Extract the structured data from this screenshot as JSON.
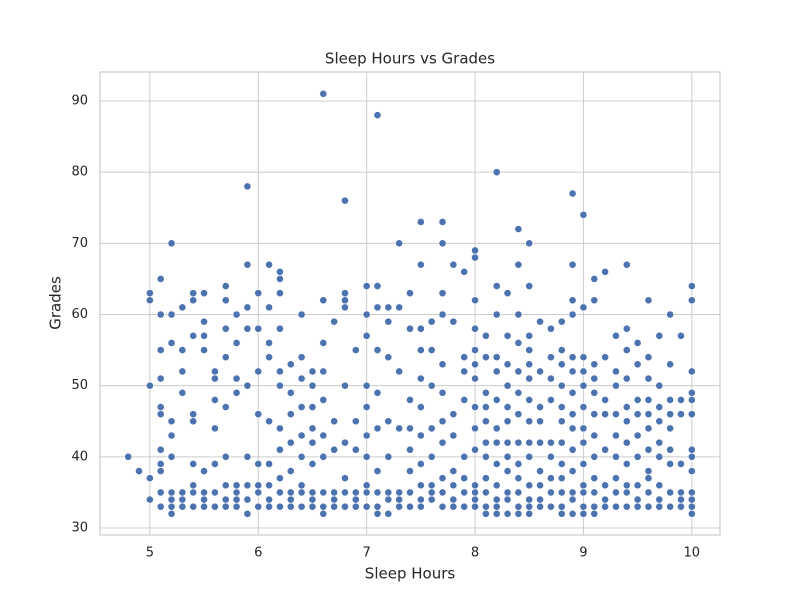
{
  "chart_data": {
    "type": "scatter",
    "title": "Sleep Hours vs Grades",
    "x_label": "Sleep Hours",
    "y_label": "Grades",
    "color": "#4c72b0",
    "grid": true,
    "xlim": [
      4.54,
      10.26
    ],
    "ylim": [
      29.02,
      94.07
    ],
    "xticks": [
      5,
      6,
      7,
      8,
      9,
      10
    ],
    "yticks": [
      30,
      40,
      50,
      60,
      70,
      80,
      90
    ],
    "x": [
      4.8,
      4.9,
      5.0,
      5.0,
      5.0,
      5.0,
      5.0,
      5.1,
      5.1,
      5.1,
      5.1,
      5.1,
      5.1,
      5.1,
      5.1,
      5.1,
      5.1,
      5.1,
      5.2,
      5.2,
      5.2,
      5.2,
      5.2,
      5.2,
      5.2,
      5.2,
      5.2,
      5.2,
      5.3,
      5.3,
      5.3,
      5.3,
      5.3,
      5.3,
      5.3,
      5.4,
      5.4,
      5.4,
      5.4,
      5.4,
      5.4,
      5.4,
      5.4,
      5.4,
      5.5,
      5.5,
      5.5,
      5.5,
      5.5,
      5.5,
      5.5,
      5.5,
      5.6,
      5.6,
      5.6,
      5.6,
      5.6,
      5.6,
      5.6,
      5.7,
      5.7,
      5.7,
      5.7,
      5.7,
      5.7,
      5.7,
      5.7,
      5.7,
      5.8,
      5.8,
      5.8,
      5.8,
      5.8,
      5.8,
      5.8,
      5.8,
      5.9,
      5.9,
      5.9,
      5.9,
      5.9,
      5.9,
      5.9,
      5.9,
      5.9,
      6.0,
      6.0,
      6.0,
      6.0,
      6.0,
      6.0,
      6.0,
      6.0,
      6.1,
      6.1,
      6.1,
      6.1,
      6.1,
      6.1,
      6.1,
      6.1,
      6.1,
      6.2,
      6.2,
      6.2,
      6.2,
      6.2,
      6.2,
      6.2,
      6.2,
      6.2,
      6.2,
      6.2,
      6.3,
      6.3,
      6.3,
      6.3,
      6.3,
      6.3,
      6.3,
      6.3,
      6.4,
      6.4,
      6.4,
      6.4,
      6.4,
      6.4,
      6.4,
      6.4,
      6.4,
      6.5,
      6.5,
      6.5,
      6.5,
      6.5,
      6.5,
      6.5,
      6.5,
      6.5,
      6.6,
      6.6,
      6.6,
      6.6,
      6.6,
      6.6,
      6.6,
      6.6,
      6.6,
      6.6,
      6.7,
      6.7,
      6.7,
      6.7,
      6.7,
      6.7,
      6.8,
      6.8,
      6.8,
      6.8,
      6.8,
      6.8,
      6.8,
      6.8,
      6.8,
      6.9,
      6.9,
      6.9,
      6.9,
      6.9,
      6.9,
      7.0,
      7.0,
      7.0,
      7.0,
      7.0,
      7.0,
      7.0,
      7.0,
      7.0,
      7.0,
      7.1,
      7.1,
      7.1,
      7.1,
      7.1,
      7.1,
      7.1,
      7.1,
      7.1,
      7.1,
      7.2,
      7.2,
      7.2,
      7.2,
      7.2,
      7.2,
      7.2,
      7.2,
      7.3,
      7.3,
      7.3,
      7.3,
      7.3,
      7.3,
      7.3,
      7.4,
      7.4,
      7.4,
      7.4,
      7.4,
      7.4,
      7.4,
      7.4,
      7.5,
      7.5,
      7.5,
      7.5,
      7.5,
      7.5,
      7.5,
      7.5,
      7.5,
      7.5,
      7.5,
      7.6,
      7.6,
      7.6,
      7.6,
      7.6,
      7.6,
      7.6,
      7.6,
      7.7,
      7.7,
      7.7,
      7.7,
      7.7,
      7.7,
      7.7,
      7.7,
      7.7,
      7.7,
      7.7,
      7.8,
      7.8,
      7.8,
      7.8,
      7.8,
      7.8,
      7.8,
      7.8,
      7.9,
      7.9,
      7.9,
      7.9,
      7.9,
      7.9,
      7.9,
      7.9,
      8.0,
      8.0,
      8.0,
      8.0,
      8.0,
      8.0,
      8.0,
      8.0,
      8.0,
      8.0,
      8.0,
      8.0,
      8.0,
      8.0,
      8.1,
      8.1,
      8.1,
      8.1,
      8.1,
      8.1,
      8.1,
      8.1,
      8.1,
      8.1,
      8.1,
      8.2,
      8.2,
      8.2,
      8.2,
      8.2,
      8.2,
      8.2,
      8.2,
      8.2,
      8.2,
      8.2,
      8.2,
      8.2,
      8.3,
      8.3,
      8.3,
      8.3,
      8.3,
      8.3,
      8.3,
      8.3,
      8.3,
      8.3,
      8.3,
      8.3,
      8.4,
      8.4,
      8.4,
      8.4,
      8.4,
      8.4,
      8.4,
      8.4,
      8.4,
      8.4,
      8.4,
      8.4,
      8.4,
      8.5,
      8.5,
      8.5,
      8.5,
      8.5,
      8.5,
      8.5,
      8.5,
      8.5,
      8.5,
      8.5,
      8.5,
      8.5,
      8.5,
      8.6,
      8.6,
      8.6,
      8.6,
      8.6,
      8.6,
      8.6,
      8.6,
      8.6,
      8.7,
      8.7,
      8.7,
      8.7,
      8.7,
      8.7,
      8.7,
      8.7,
      8.7,
      8.8,
      8.8,
      8.8,
      8.8,
      8.8,
      8.8,
      8.8,
      8.8,
      8.8,
      8.8,
      8.8,
      8.8,
      8.9,
      8.9,
      8.9,
      8.9,
      8.9,
      8.9,
      8.9,
      8.9,
      8.9,
      8.9,
      8.9,
      8.9,
      8.9,
      8.9,
      9.0,
      9.0,
      9.0,
      9.0,
      9.0,
      9.0,
      9.0,
      9.0,
      9.0,
      9.0,
      9.0,
      9.0,
      9.0,
      9.1,
      9.1,
      9.1,
      9.1,
      9.1,
      9.1,
      9.1,
      9.1,
      9.1,
      9.1,
      9.1,
      9.1,
      9.2,
      9.2,
      9.2,
      9.2,
      9.2,
      9.2,
      9.2,
      9.2,
      9.3,
      9.3,
      9.3,
      9.3,
      9.3,
      9.3,
      9.3,
      9.3,
      9.3,
      9.4,
      9.4,
      9.4,
      9.4,
      9.4,
      9.4,
      9.4,
      9.4,
      9.4,
      9.4,
      9.4,
      9.5,
      9.5,
      9.5,
      9.5,
      9.5,
      9.5,
      9.5,
      9.5,
      9.5,
      9.6,
      9.6,
      9.6,
      9.6,
      9.6,
      9.6,
      9.6,
      9.6,
      9.6,
      9.6,
      9.6,
      9.7,
      9.7,
      9.7,
      9.7,
      9.7,
      9.7,
      9.7,
      9.7,
      9.7,
      9.8,
      9.8,
      9.8,
      9.8,
      9.8,
      9.8,
      9.8,
      9.8,
      9.8,
      9.9,
      9.9,
      9.9,
      9.9,
      9.9,
      9.9,
      9.9,
      10.0,
      10.0,
      10.0,
      10.0,
      10.0,
      10.0,
      10.0,
      10.0,
      10.0,
      10.0,
      10.0,
      10.0,
      10.0
    ],
    "values": [
      40,
      38,
      34,
      37,
      50,
      62,
      63,
      33,
      35,
      38,
      39,
      41,
      46,
      47,
      51,
      55,
      60,
      65,
      32,
      33,
      34,
      35,
      40,
      43,
      45,
      56,
      60,
      70,
      33,
      34,
      35,
      49,
      52,
      55,
      61,
      33,
      35,
      36,
      39,
      45,
      46,
      57,
      62,
      63,
      33,
      34,
      35,
      38,
      55,
      57,
      59,
      63,
      33,
      35,
      39,
      44,
      48,
      51,
      52,
      33,
      34,
      36,
      40,
      47,
      54,
      58,
      62,
      64,
      33,
      34,
      35,
      36,
      49,
      51,
      56,
      60,
      32,
      34,
      36,
      40,
      50,
      58,
      61,
      67,
      78,
      33,
      35,
      36,
      39,
      46,
      52,
      58,
      63,
      33,
      34,
      36,
      39,
      45,
      54,
      56,
      61,
      67,
      33,
      35,
      37,
      41,
      44,
      50,
      52,
      58,
      63,
      65,
      66,
      33,
      34,
      35,
      38,
      42,
      46,
      49,
      53,
      33,
      35,
      36,
      40,
      43,
      47,
      51,
      54,
      60,
      33,
      34,
      35,
      39,
      42,
      44,
      47,
      50,
      52,
      32,
      33,
      35,
      40,
      43,
      48,
      52,
      56,
      62,
      91,
      33,
      34,
      35,
      41,
      45,
      59,
      33,
      35,
      37,
      42,
      50,
      61,
      62,
      63,
      76,
      33,
      34,
      35,
      41,
      45,
      55,
      33,
      35,
      36,
      40,
      43,
      47,
      50,
      57,
      60,
      64,
      32,
      33,
      35,
      38,
      44,
      49,
      55,
      61,
      64,
      88,
      32,
      34,
      35,
      40,
      45,
      54,
      59,
      61,
      33,
      34,
      35,
      44,
      52,
      61,
      70,
      33,
      35,
      38,
      41,
      44,
      48,
      58,
      63,
      33,
      34,
      36,
      39,
      43,
      47,
      51,
      55,
      58,
      67,
      73,
      34,
      35,
      36,
      40,
      44,
      50,
      55,
      59,
      33,
      35,
      37,
      42,
      45,
      49,
      53,
      60,
      63,
      70,
      73,
      33,
      34,
      36,
      38,
      43,
      46,
      59,
      67,
      33,
      35,
      37,
      40,
      48,
      52,
      54,
      66,
      33,
      34,
      35,
      36,
      41,
      44,
      47,
      51,
      53,
      55,
      58,
      62,
      68,
      69,
      32,
      33,
      35,
      37,
      40,
      42,
      45,
      47,
      49,
      54,
      57,
      32,
      33,
      34,
      36,
      39,
      42,
      44,
      48,
      52,
      54,
      60,
      64,
      80,
      32,
      34,
      35,
      38,
      40,
      42,
      45,
      47,
      50,
      53,
      57,
      63,
      32,
      33,
      35,
      37,
      39,
      42,
      46,
      49,
      52,
      56,
      60,
      67,
      72,
      32,
      33,
      34,
      36,
      40,
      42,
      45,
      48,
      51,
      53,
      55,
      57,
      64,
      70,
      33,
      34,
      36,
      38,
      42,
      45,
      47,
      52,
      59,
      33,
      35,
      37,
      40,
      42,
      48,
      51,
      54,
      58,
      32,
      33,
      35,
      37,
      39,
      42,
      45,
      47,
      50,
      53,
      55,
      59,
      32,
      34,
      35,
      38,
      41,
      44,
      46,
      49,
      52,
      54,
      60,
      62,
      67,
      77,
      32,
      33,
      35,
      36,
      39,
      42,
      44,
      47,
      50,
      52,
      54,
      61,
      74,
      32,
      33,
      35,
      37,
      40,
      43,
      46,
      49,
      51,
      53,
      62,
      65,
      33,
      34,
      36,
      41,
      46,
      48,
      54,
      66,
      33,
      35,
      37,
      40,
      43,
      46,
      50,
      52,
      57,
      33,
      35,
      36,
      39,
      42,
      45,
      47,
      51,
      55,
      58,
      67,
      33,
      34,
      36,
      40,
      43,
      46,
      48,
      53,
      56,
      33,
      35,
      37,
      38,
      41,
      44,
      46,
      48,
      51,
      54,
      62,
      33,
      34,
      36,
      40,
      42,
      45,
      47,
      50,
      57,
      33,
      35,
      39,
      41,
      44,
      46,
      48,
      53,
      60,
      33,
      34,
      35,
      39,
      46,
      48,
      57,
      32,
      33,
      34,
      35,
      38,
      40,
      41,
      46,
      48,
      49,
      52,
      62,
      64
    ]
  }
}
